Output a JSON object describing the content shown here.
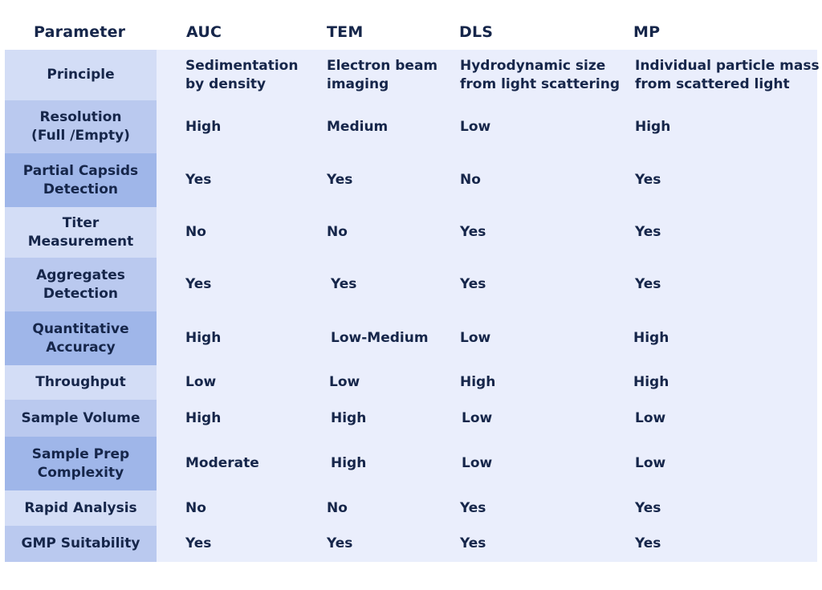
{
  "header": {
    "parameter": "Parameter",
    "columns": [
      "AUC",
      "TEM",
      "DLS",
      "MP"
    ]
  },
  "rows": [
    {
      "parameter": "Principle",
      "values": [
        "Sedimentation\nby density",
        "Electron beam\nimaging",
        "Hydrodynamic size\nfrom light scattering",
        "Individual particle mass\nfrom scattered light"
      ]
    },
    {
      "parameter": "Resolution\n(Full /Empty)",
      "values": [
        "High",
        "Medium",
        "Low",
        "High"
      ]
    },
    {
      "parameter": "Partial Capsids\nDetection",
      "values": [
        "Yes",
        "Yes",
        "No",
        "Yes"
      ]
    },
    {
      "parameter": "Titer\nMeasurement",
      "values": [
        "No",
        "No",
        "Yes",
        "Yes"
      ]
    },
    {
      "parameter": "Aggregates\nDetection",
      "values": [
        "Yes",
        "Yes",
        "Yes",
        "Yes"
      ]
    },
    {
      "parameter": "Quantitative\nAccuracy",
      "values": [
        "High",
        "Low-Medium",
        "Low",
        "High"
      ]
    },
    {
      "parameter": "Throughput",
      "values": [
        "Low",
        "Low",
        "High",
        "High"
      ]
    },
    {
      "parameter": "Sample Volume",
      "values": [
        "High",
        "High",
        "Low",
        "Low"
      ]
    },
    {
      "parameter": "Sample Prep\nComplexity",
      "values": [
        "Moderate",
        "High",
        "Low",
        "Low"
      ]
    },
    {
      "parameter": "Rapid Analysis",
      "values": [
        "No",
        "No",
        "Yes",
        "Yes"
      ]
    },
    {
      "parameter": "GMP Suitability",
      "values": [
        "Yes",
        "Yes",
        "Yes",
        "Yes"
      ]
    }
  ]
}
